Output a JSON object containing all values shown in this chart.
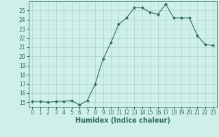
{
  "x": [
    0,
    1,
    2,
    3,
    4,
    5,
    6,
    7,
    8,
    9,
    10,
    11,
    12,
    13,
    14,
    15,
    16,
    17,
    18,
    19,
    20,
    21,
    22,
    23
  ],
  "y": [
    15.1,
    15.1,
    15.0,
    15.1,
    15.1,
    15.2,
    14.7,
    15.2,
    17.0,
    19.7,
    21.5,
    23.5,
    24.2,
    25.3,
    25.3,
    24.8,
    24.6,
    25.7,
    24.2,
    24.2,
    24.2,
    22.3,
    21.3,
    21.2
  ],
  "line_color": "#2e6b5e",
  "marker": "D",
  "marker_size": 2.0,
  "bg_color": "#cff0ea",
  "grid_color": "#aad4cc",
  "xlabel": "Humidex (Indice chaleur)",
  "ylim": [
    14.5,
    26.0
  ],
  "xlim": [
    -0.5,
    23.5
  ],
  "yticks": [
    15,
    16,
    17,
    18,
    19,
    20,
    21,
    22,
    23,
    24,
    25
  ],
  "xticks": [
    0,
    1,
    2,
    3,
    4,
    5,
    6,
    7,
    8,
    9,
    10,
    11,
    12,
    13,
    14,
    15,
    16,
    17,
    18,
    19,
    20,
    21,
    22,
    23
  ],
  "tick_label_fontsize": 5.5,
  "xlabel_fontsize": 7
}
